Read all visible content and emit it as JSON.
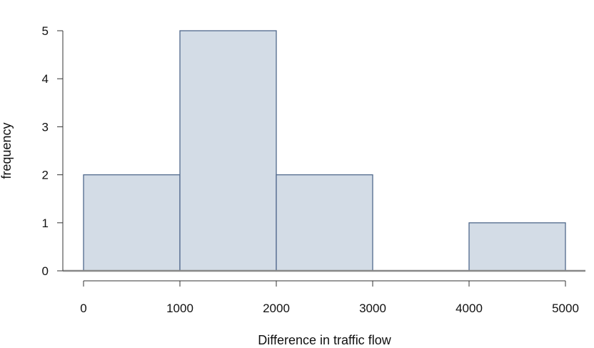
{
  "chart_data": {
    "type": "histogram",
    "title": "",
    "xlabel": "Difference in traffic flow",
    "ylabel": "frequency",
    "bins": [
      {
        "start": 0,
        "end": 1000,
        "count": 2
      },
      {
        "start": 1000,
        "end": 2000,
        "count": 5
      },
      {
        "start": 2000,
        "end": 3000,
        "count": 2
      },
      {
        "start": 3000,
        "end": 4000,
        "count": 0
      },
      {
        "start": 4000,
        "end": 5000,
        "count": 1
      }
    ],
    "xticks": [
      0,
      1000,
      2000,
      3000,
      4000,
      5000
    ],
    "yticks": [
      0,
      1,
      2,
      3,
      4,
      5
    ],
    "xlim": [
      0,
      5000
    ],
    "ylim": [
      0,
      5
    ],
    "grid": false,
    "bar_fill": "#d3dce6",
    "bar_stroke": "#50698c",
    "axis_color": "#888888"
  }
}
